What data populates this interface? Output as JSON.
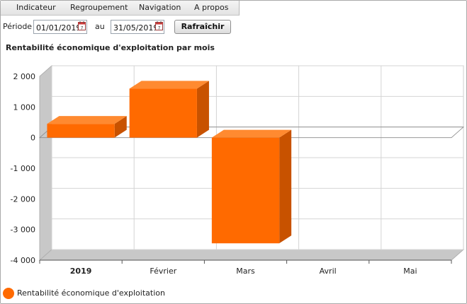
{
  "menu": {
    "items": [
      {
        "label": "Indicateur"
      },
      {
        "label": "Regroupement"
      },
      {
        "label": "Navigation"
      },
      {
        "label": "A propos"
      }
    ]
  },
  "toolbar": {
    "period_label": "Période",
    "start_date": "01/01/2019",
    "to_label": "au",
    "end_date": "31/05/2019",
    "refresh_label": "Rafraîchir"
  },
  "colors": {
    "bar_front": "#ff6a00",
    "bar_side": "#c85200",
    "bar_top": "#ff8a30",
    "wall": "#c8c8c8"
  },
  "chart_data": {
    "type": "bar",
    "title": "Rentabilité économique d'exploitation par mois",
    "categories": [
      "2019",
      "Février",
      "Mars",
      "Avril",
      "Mai"
    ],
    "series": [
      {
        "name": "Rentabilité économique d'exploitation",
        "values": [
          450,
          1600,
          -3450,
          null,
          null
        ]
      }
    ],
    "ylim": [
      -4000,
      2000
    ],
    "yticks": [
      2000,
      1000,
      0,
      -1000,
      -2000,
      -3000,
      -4000
    ],
    "ytick_labels": [
      "2 000",
      "1 000",
      "0",
      "-1 000",
      "-2 000",
      "-3 000",
      "-4 000"
    ],
    "grid": true,
    "legend": "bottom-left",
    "style": "3d"
  }
}
